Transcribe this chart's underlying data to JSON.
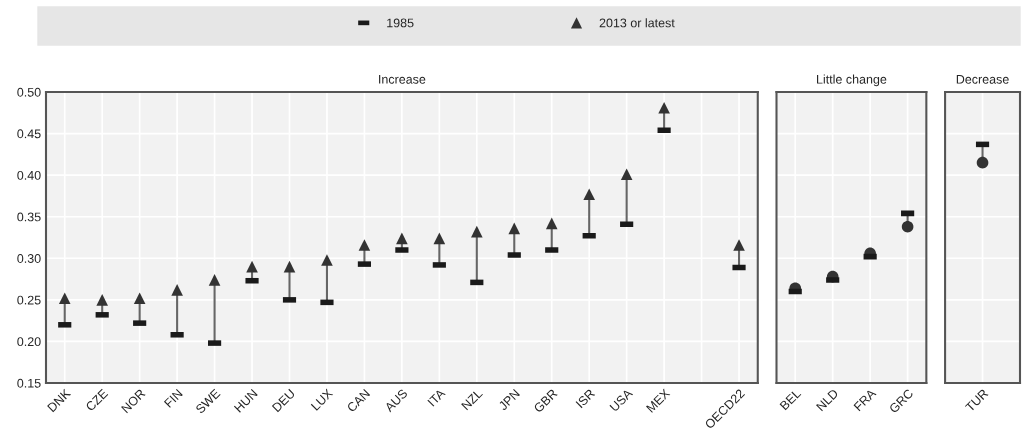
{
  "chart_data": [
    {
      "type": "scatter",
      "title": "Increase",
      "categories": [
        "DNK",
        "CZE",
        "NOR",
        "FIN",
        "SWE",
        "HUN",
        "DEU",
        "LUX",
        "CAN",
        "AUS",
        "ITA",
        "NZL",
        "JPN",
        "GBR",
        "ISR",
        "USA",
        "MEX",
        null,
        "OECD22"
      ],
      "ylim": [
        0.15,
        0.5
      ],
      "yticks": [
        {
          "value": 0.15,
          "label": "0.15"
        },
        {
          "value": 0.2,
          "label": "0.20"
        },
        {
          "value": 0.25,
          "label": "0.25"
        },
        {
          "value": 0.3,
          "label": "0.30"
        },
        {
          "value": 0.35,
          "label": "0.35"
        },
        {
          "value": 0.4,
          "label": "0.40"
        },
        {
          "value": 0.45,
          "label": "0.45"
        },
        {
          "value": 0.5,
          "label": "0.50"
        }
      ],
      "grid": true,
      "legend": "top",
      "series": [
        {
          "name": "1985",
          "color": "#1a1a1a",
          "values": [
            0.22,
            0.232,
            0.222,
            0.208,
            0.198,
            0.273,
            0.25,
            0.247,
            0.293,
            0.31,
            0.292,
            0.271,
            0.304,
            0.31,
            0.327,
            0.341,
            0.454,
            null,
            0.289
          ]
        },
        {
          "name": "2013 or latest",
          "color": "#333333",
          "marker": "triangle",
          "values": [
            0.252,
            0.25,
            0.252,
            0.262,
            0.274,
            0.29,
            0.29,
            0.298,
            0.316,
            0.324,
            0.324,
            0.332,
            0.336,
            0.342,
            0.377,
            0.401,
            0.481,
            null,
            0.316
          ]
        }
      ]
    },
    {
      "type": "scatter",
      "title": "Little change",
      "categories": [
        "BEL",
        "NLD",
        "FRA",
        "GRC"
      ],
      "ylim": [
        0.15,
        0.5
      ],
      "yticks": [
        0.15,
        0.2,
        0.25,
        0.3,
        0.35,
        0.4,
        0.45,
        0.5
      ],
      "grid": true,
      "tick_labels": "x",
      "series": [
        {
          "color": "#1a1a1a",
          "values": [
            0.26,
            0.274,
            0.302,
            0.354
          ]
        },
        {
          "color": "#333333",
          "marker": "circle",
          "values": [
            0.264,
            0.278,
            0.306,
            0.338
          ]
        }
      ]
    },
    {
      "type": "scatter",
      "title": "Decrease",
      "categories": [
        "TUR"
      ],
      "ylim": [
        0.15,
        0.5
      ],
      "yticks": [
        0.15,
        0.2,
        0.25,
        0.3,
        0.35,
        0.4,
        0.45,
        0.5
      ],
      "grid": true,
      "tick_labels": "x",
      "series": [
        {
          "color": "#1a1a1a",
          "values": [
            0.437
          ]
        },
        {
          "color": "#333333",
          "marker": "circle",
          "values": [
            0.415
          ]
        }
      ]
    }
  ]
}
